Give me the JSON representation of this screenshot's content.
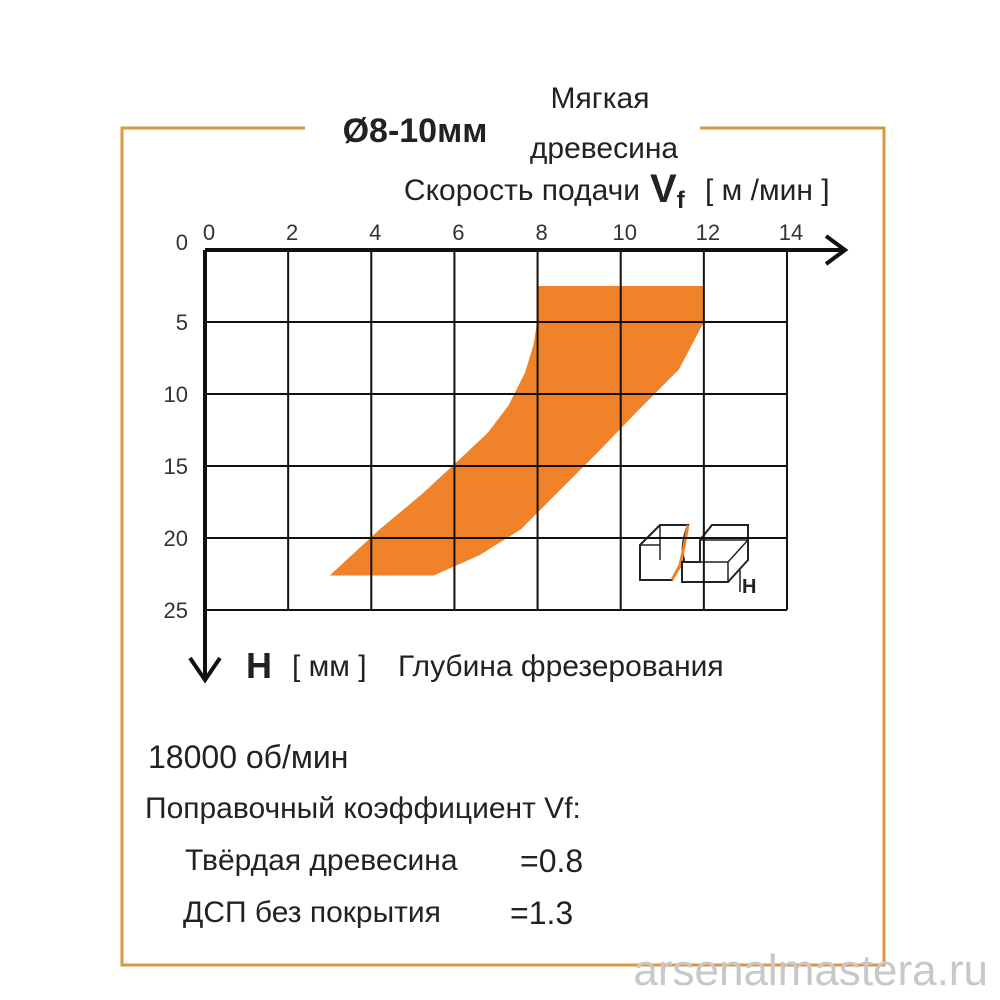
{
  "chart_data": {
    "type": "polygon",
    "title": "Ø8-10мм",
    "subtitle": [
      "Мягкая",
      "древесина"
    ],
    "xlabel": "Скорость подачи",
    "x_symbol": {
      "main": "V",
      "sub": "f"
    },
    "x_unit": "[ м /мин ]",
    "ylabel_symbol": "H",
    "ylabel_unit": "[ мм ]",
    "ylabel": "Глубина фрезерования",
    "x": [
      8,
      12,
      12,
      11.4,
      10.4,
      9.5,
      8.6,
      7.6,
      6.6,
      5.5,
      3,
      4.2,
      5.2,
      6.1,
      6.8,
      7.3,
      7.7,
      7.9,
      8
    ],
    "values": [
      2.5,
      2.5,
      5,
      8.3,
      11.2,
      13.9,
      16.5,
      19.4,
      21.2,
      22.6,
      22.6,
      19.4,
      17,
      14.6,
      12.7,
      10.8,
      8.5,
      6.6,
      4.8
    ],
    "color": "#f0832a",
    "xlim": [
      0,
      14
    ],
    "xticks": [
      0,
      2,
      4,
      6,
      8,
      10,
      12,
      14
    ],
    "ylim": [
      0,
      25
    ],
    "yticks": [
      0,
      5,
      10,
      15,
      20,
      25
    ],
    "grid": true,
    "icon_label": "H",
    "speed": "18000 об/мин",
    "correction_title": "Поправочный коэффициент Vf:",
    "corrections": [
      {
        "material": "Твёрдая древесина",
        "factor": "=0.8"
      },
      {
        "material": "ДСП без покрытия",
        "factor": "=1.3"
      }
    ],
    "watermark": "arsenalmastera.ru"
  }
}
